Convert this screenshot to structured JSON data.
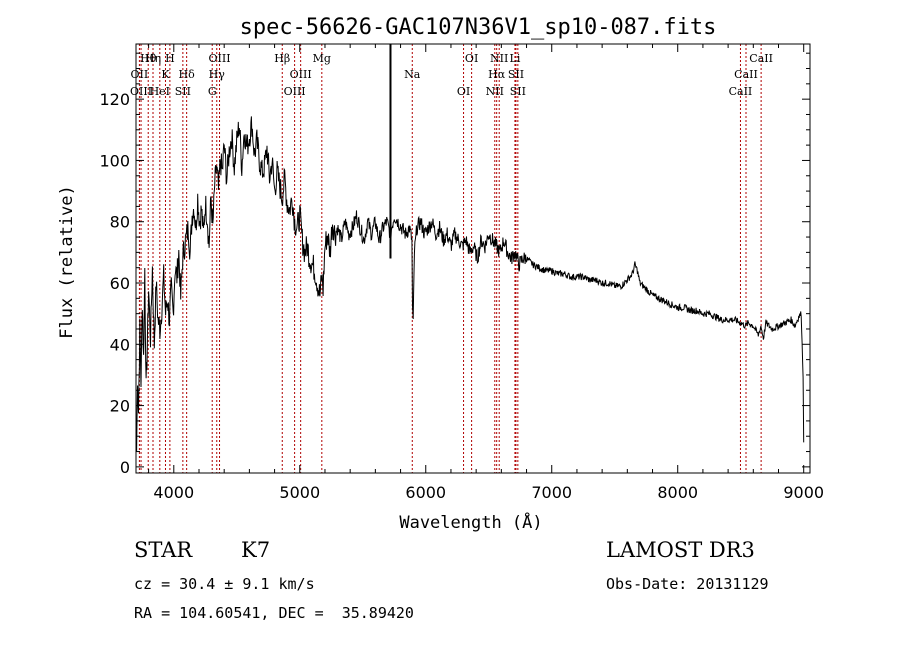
{
  "chart_data": {
    "type": "line",
    "title": "spec-56626-GAC107N36V1_sp10-087.fits",
    "xlabel": "Wavelength (Å)",
    "ylabel": "Flux (relative)",
    "xlim": [
      3700,
      9050
    ],
    "ylim": [
      -2,
      138
    ],
    "xticks": [
      4000,
      5000,
      6000,
      7000,
      8000,
      9000
    ],
    "yticks": [
      0,
      20,
      40,
      60,
      80,
      100,
      120
    ],
    "grid": false,
    "marker_wavelength": 5720,
    "series": [
      {
        "name": "flux",
        "x": [
          3705,
          3712,
          3720,
          3730,
          3740,
          3750,
          3760,
          3770,
          3780,
          3790,
          3800,
          3815,
          3830,
          3845,
          3860,
          3875,
          3890,
          3905,
          3920,
          3935,
          3950,
          3965,
          3980,
          3995,
          4010,
          4025,
          4040,
          4055,
          4070,
          4085,
          4100,
          4115,
          4130,
          4145,
          4160,
          4175,
          4190,
          4205,
          4220,
          4235,
          4250,
          4265,
          4280,
          4295,
          4310,
          4325,
          4340,
          4355,
          4370,
          4385,
          4400,
          4420,
          4440,
          4460,
          4480,
          4500,
          4520,
          4540,
          4560,
          4580,
          4600,
          4620,
          4640,
          4660,
          4680,
          4700,
          4720,
          4740,
          4760,
          4780,
          4800,
          4820,
          4840,
          4860,
          4880,
          4900,
          4920,
          4940,
          4960,
          4980,
          5000,
          5020,
          5040,
          5060,
          5080,
          5100,
          5120,
          5140,
          5160,
          5175,
          5185,
          5200,
          5220,
          5240,
          5260,
          5280,
          5300,
          5330,
          5360,
          5390,
          5420,
          5450,
          5480,
          5510,
          5540,
          5570,
          5600,
          5630,
          5660,
          5690,
          5720,
          5750,
          5780,
          5810,
          5840,
          5870,
          5890,
          5895,
          5900,
          5910,
          5930,
          5960,
          5990,
          6020,
          6050,
          6080,
          6110,
          6140,
          6170,
          6200,
          6230,
          6260,
          6290,
          6320,
          6350,
          6380,
          6410,
          6440,
          6470,
          6500,
          6530,
          6560,
          6590,
          6620,
          6650,
          6680,
          6710,
          6740,
          6770,
          6800,
          6850,
          6900,
          6950,
          7000,
          7050,
          7100,
          7150,
          7200,
          7250,
          7300,
          7350,
          7400,
          7450,
          7500,
          7550,
          7600,
          7640,
          7660,
          7680,
          7700,
          7750,
          7800,
          7850,
          7900,
          7950,
          8000,
          8050,
          8100,
          8150,
          8200,
          8250,
          8300,
          8350,
          8400,
          8450,
          8500,
          8540,
          8560,
          8600,
          8640,
          8660,
          8680,
          8700,
          8750,
          8800,
          8850,
          8900,
          8930,
          8960,
          8980,
          8995,
          9000
        ],
        "y": [
          5,
          30,
          18,
          45,
          28,
          55,
          35,
          65,
          25,
          40,
          58,
          42,
          65,
          40,
          60,
          48,
          45,
          52,
          62,
          50,
          55,
          48,
          58,
          50,
          65,
          62,
          70,
          55,
          68,
          72,
          75,
          78,
          70,
          82,
          85,
          78,
          88,
          80,
          84,
          76,
          86,
          82,
          72,
          88,
          78,
          92,
          98,
          90,
          100,
          96,
          105,
          94,
          103,
          108,
          98,
          106,
          112,
          98,
          110,
          104,
          108,
          112,
          102,
          106,
          100,
          96,
          98,
          104,
          94,
          100,
          90,
          96,
          92,
          88,
          94,
          86,
          84,
          88,
          80,
          78,
          82,
          74,
          70,
          72,
          68,
          66,
          64,
          60,
          56,
          62,
          58,
          72,
          76,
          70,
          80,
          76,
          78,
          74,
          80,
          76,
          78,
          82,
          78,
          74,
          80,
          76,
          80,
          74,
          78,
          80,
          76,
          82,
          80,
          78,
          76,
          78,
          74,
          52,
          47,
          70,
          78,
          80,
          76,
          78,
          80,
          76,
          78,
          74,
          76,
          72,
          76,
          74,
          72,
          74,
          70,
          72,
          68,
          74,
          72,
          76,
          74,
          72,
          70,
          74,
          70,
          68,
          70,
          66,
          68,
          68,
          66,
          65,
          64,
          64,
          63,
          63,
          62,
          62,
          62,
          61,
          61,
          60,
          60,
          59,
          59,
          61,
          63,
          66,
          64,
          60,
          58,
          56,
          55,
          54,
          53,
          52,
          52,
          51,
          51,
          50,
          50,
          49,
          48,
          48,
          48,
          47,
          46,
          47,
          46,
          43,
          46,
          42,
          47,
          45,
          46,
          47,
          48,
          46,
          49,
          50,
          30,
          8
        ]
      }
    ],
    "lines": [
      {
        "name": "Hθ",
        "wavelength": 3797
      },
      {
        "name": "OII",
        "wavelength": 3727
      },
      {
        "name": "OIII",
        "wavelength": 3740
      },
      {
        "name": "Hη",
        "wavelength": 3835
      },
      {
        "name": "K",
        "wavelength": 3934
      },
      {
        "name": "HeI",
        "wavelength": 3889
      },
      {
        "name": "H",
        "wavelength": 3969
      },
      {
        "name": "Hδ",
        "wavelength": 4102
      },
      {
        "name": "SII",
        "wavelength": 4072
      },
      {
        "name": "OIII",
        "wavelength": 4363
      },
      {
        "name": "Hγ",
        "wavelength": 4341
      },
      {
        "name": "G",
        "wavelength": 4305
      },
      {
        "name": "Hβ",
        "wavelength": 4861
      },
      {
        "name": "OIII",
        "wavelength": 5007
      },
      {
        "name": "OIII",
        "wavelength": 4959
      },
      {
        "name": "Mg",
        "wavelength": 5175
      },
      {
        "name": "Na",
        "wavelength": 5893
      },
      {
        "name": "OI",
        "wavelength": 6300
      },
      {
        "name": "OI",
        "wavelength": 6364
      },
      {
        "name": "Hα",
        "wavelength": 6563
      },
      {
        "name": "NII",
        "wavelength": 6548
      },
      {
        "name": "NII",
        "wavelength": 6583
      },
      {
        "name": "SII",
        "wavelength": 6716
      },
      {
        "name": "SII",
        "wavelength": 6731
      },
      {
        "name": "Li",
        "wavelength": 6708
      },
      {
        "name": "CaII",
        "wavelength": 8542
      },
      {
        "name": "CaII",
        "wavelength": 8498
      },
      {
        "name": "CaII",
        "wavelength": 8662
      }
    ],
    "annotations": {
      "object_class": "STAR",
      "subclass": "K7",
      "redshift": "cz = 30.4 ± 9.1 km/s",
      "coordinates": "RA = 104.60541, DEC =  35.89420",
      "survey": "LAMOST DR3",
      "obs_date": "Obs-Date: 20131129"
    }
  }
}
